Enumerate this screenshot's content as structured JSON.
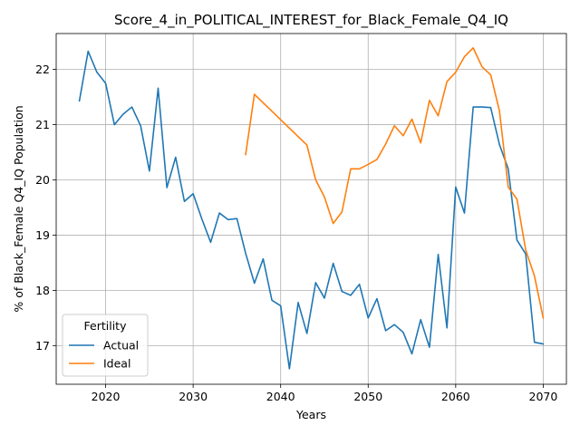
{
  "chart_data": {
    "type": "line",
    "title": "Score_4_in_POLITICAL_INTEREST_for_Black_Female_Q4_IQ",
    "xlabel": "Years",
    "ylabel": "% of Black_Female Q4_IQ Population",
    "xlim": [
      2014.35,
      2072.65
    ],
    "ylim": [
      16.3,
      22.65
    ],
    "xticks": [
      2020,
      2030,
      2040,
      2050,
      2060,
      2070
    ],
    "yticks": [
      17,
      18,
      19,
      20,
      21,
      22
    ],
    "grid": true,
    "legend": {
      "title": "Fertility",
      "position": "lower-left"
    },
    "series": [
      {
        "name": "Actual",
        "color": "#1f77b4",
        "points": [
          [
            2017,
            21.43
          ],
          [
            2018,
            22.33
          ],
          [
            2019,
            21.95
          ],
          [
            2020,
            21.75
          ],
          [
            2021,
            21.0
          ],
          [
            2022,
            21.19
          ],
          [
            2023,
            21.32
          ],
          [
            2024,
            20.98
          ],
          [
            2025,
            20.16
          ],
          [
            2026,
            21.66
          ],
          [
            2027,
            19.86
          ],
          [
            2028,
            20.41
          ],
          [
            2029,
            19.61
          ],
          [
            2030,
            19.75
          ],
          [
            2031,
            19.29
          ],
          [
            2032,
            18.87
          ],
          [
            2033,
            19.4
          ],
          [
            2034,
            19.28
          ],
          [
            2035,
            19.3
          ],
          [
            2036,
            18.67
          ],
          [
            2037,
            18.13
          ],
          [
            2038,
            18.57
          ],
          [
            2039,
            17.82
          ],
          [
            2040,
            17.72
          ],
          [
            2041,
            16.58
          ],
          [
            2042,
            17.78
          ],
          [
            2043,
            17.22
          ],
          [
            2044,
            18.14
          ],
          [
            2045,
            17.86
          ],
          [
            2046,
            18.49
          ],
          [
            2047,
            17.98
          ],
          [
            2048,
            17.91
          ],
          [
            2049,
            18.11
          ],
          [
            2050,
            17.5
          ],
          [
            2051,
            17.85
          ],
          [
            2052,
            17.27
          ],
          [
            2053,
            17.38
          ],
          [
            2054,
            17.24
          ],
          [
            2055,
            16.85
          ],
          [
            2056,
            17.47
          ],
          [
            2057,
            16.97
          ],
          [
            2058,
            18.65
          ],
          [
            2059,
            17.32
          ],
          [
            2060,
            19.87
          ],
          [
            2061,
            19.4
          ],
          [
            2062,
            21.32
          ],
          [
            2063,
            21.32
          ],
          [
            2064,
            21.31
          ],
          [
            2065,
            20.64
          ],
          [
            2066,
            20.2
          ],
          [
            2067,
            18.91
          ],
          [
            2068,
            18.66
          ],
          [
            2069,
            17.06
          ],
          [
            2070,
            17.03
          ]
        ]
      },
      {
        "name": "Ideal",
        "color": "#ff7f0e",
        "points": [
          [
            2036,
            20.46
          ],
          [
            2037,
            21.55
          ],
          [
            2043,
            20.63
          ],
          [
            2044,
            20.0
          ],
          [
            2045,
            19.69
          ],
          [
            2046,
            19.21
          ],
          [
            2047,
            19.42
          ],
          [
            2048,
            20.2
          ],
          [
            2049,
            20.2
          ],
          [
            2050,
            20.28
          ],
          [
            2051,
            20.37
          ],
          [
            2052,
            20.65
          ],
          [
            2053,
            20.98
          ],
          [
            2054,
            20.8
          ],
          [
            2055,
            21.1
          ],
          [
            2056,
            20.67
          ],
          [
            2057,
            21.44
          ],
          [
            2058,
            21.16
          ],
          [
            2059,
            21.78
          ],
          [
            2060,
            21.95
          ],
          [
            2061,
            22.23
          ],
          [
            2062,
            22.39
          ],
          [
            2063,
            22.05
          ],
          [
            2064,
            21.9
          ],
          [
            2065,
            21.25
          ],
          [
            2066,
            19.87
          ],
          [
            2067,
            19.65
          ],
          [
            2068,
            18.73
          ],
          [
            2069,
            18.26
          ],
          [
            2070,
            17.5
          ]
        ]
      }
    ]
  }
}
